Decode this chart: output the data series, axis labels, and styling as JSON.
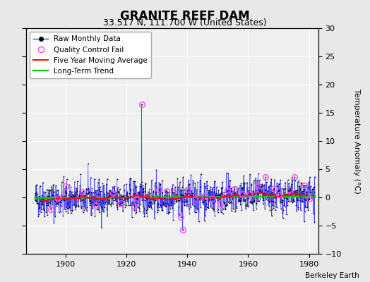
{
  "title": "GRANITE REEF DAM",
  "subtitle": "33.517 N, 111.700 W (United States)",
  "attribution": "Berkeley Earth",
  "ylabel_right": "Temperature Anomaly (°C)",
  "xlim": [
    1887,
    1983
  ],
  "ylim": [
    -10,
    30
  ],
  "yticks": [
    -10,
    -5,
    0,
    5,
    10,
    15,
    20,
    25,
    30
  ],
  "xticks": [
    1900,
    1920,
    1940,
    1960,
    1980
  ],
  "x_start": 1890,
  "n_months": 1104,
  "seed": 42,
  "blue_line_color": "#4444FF",
  "black_dot_color": "#000000",
  "red_line_color": "#FF0000",
  "green_line_color": "#00CC00",
  "magenta_circle_color": "#FF44FF",
  "background_color": "#E8E8E8",
  "plot_bg_color": "#F0F0F0",
  "grid_color": "#FFFFFF",
  "title_fontsize": 12,
  "subtitle_fontsize": 9,
  "legend_fontsize": 7.5,
  "axis_fontsize": 8,
  "spike_year": 1925,
  "spike_value": 16.5,
  "neg_spike_year": 1938.5,
  "neg_spike_value": -5.8,
  "noise_scale": 1.6,
  "qc_positions_years": [
    1895.25,
    1897.58,
    1900.17,
    1905.42,
    1910.08,
    1915.67,
    1918.33,
    1922.5,
    1923.17,
    1925.0,
    1930.75,
    1933.25,
    1935.5,
    1937.92,
    1938.5,
    1940.17,
    1942.67,
    1945.42,
    1948.25,
    1950.75,
    1953.33,
    1955.58,
    1958.08,
    1960.5,
    1963.25,
    1965.75,
    1968.42,
    1970.17,
    1973.67,
    1975.33,
    1978.58,
    1980.08
  ]
}
